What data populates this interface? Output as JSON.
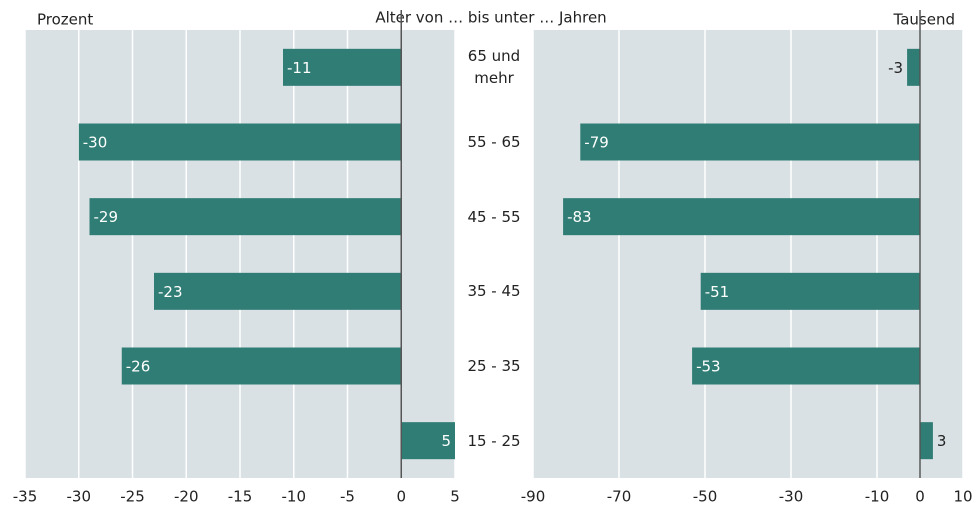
{
  "title": "Alter von … bis unter … Jahren",
  "chart_data": [
    {
      "type": "bar",
      "orientation": "horizontal",
      "xlabel": "Prozent",
      "categories": [
        "65 und mehr",
        "55 - 65",
        "45 - 55",
        "35 - 45",
        "25 - 35",
        "15 - 25"
      ],
      "values": [
        -11,
        -30,
        -29,
        -23,
        -26,
        5
      ],
      "color": "#2f7d74",
      "xlim": [
        -35,
        5
      ],
      "xticks": [
        -35,
        -30,
        -25,
        -20,
        -15,
        -10,
        -5,
        0,
        5
      ],
      "grid": true
    },
    {
      "type": "bar",
      "orientation": "horizontal",
      "xlabel": "Tausend",
      "values": [
        -3,
        -79,
        -83,
        -51,
        -53,
        3
      ],
      "color": "#2f7d74",
      "xlim": [
        -90,
        10
      ],
      "xticks": [
        -90,
        -70,
        -50,
        -30,
        -10,
        0,
        10
      ],
      "grid": true
    }
  ]
}
